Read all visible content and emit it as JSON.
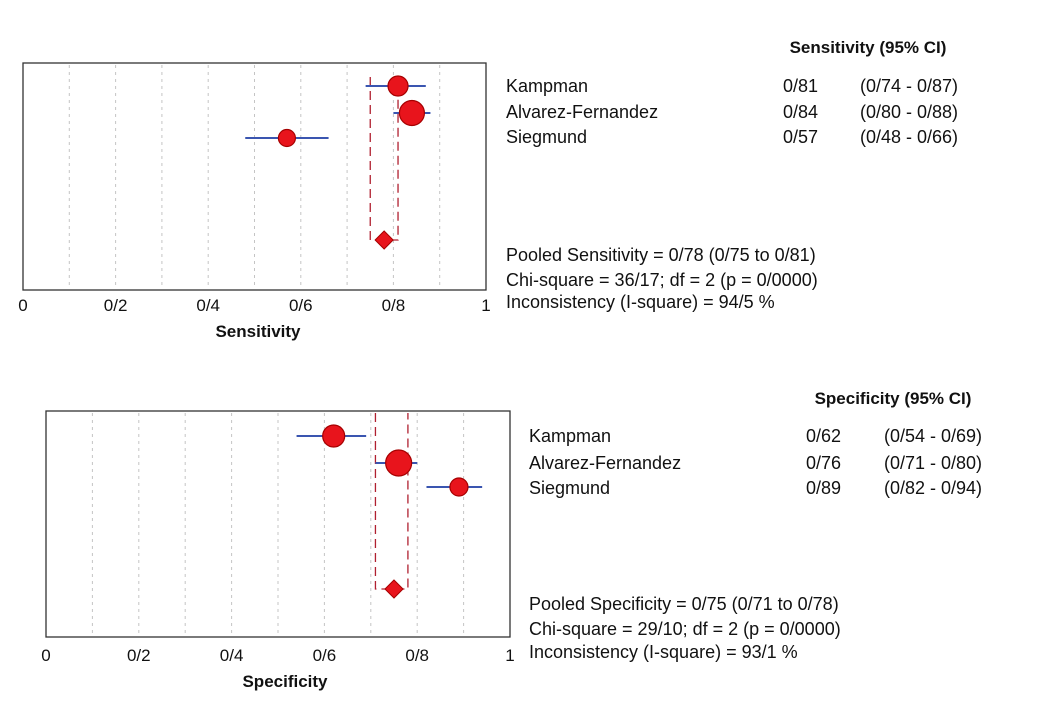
{
  "chart_data": [
    {
      "type": "forest",
      "xlabel": "Sensitivity",
      "xlim": [
        0,
        1
      ],
      "x_ticks": [
        "0",
        "0/2",
        "0/4",
        "0/6",
        "0/8",
        "1"
      ],
      "x_tick_values": [
        0,
        0.2,
        0.4,
        0.6,
        0.8,
        1.0
      ],
      "column_header": "Sensitivity (95% CI)",
      "studies": [
        {
          "name": "Kampman",
          "estimate": 0.81,
          "lower": 0.74,
          "upper": 0.87,
          "weight": 1.0,
          "value_label": "0/81",
          "ci_label": "(0/74 - 0/87)"
        },
        {
          "name": "Alvarez-Fernandez",
          "estimate": 0.84,
          "lower": 0.8,
          "upper": 0.88,
          "weight": 1.25,
          "value_label": "0/84",
          "ci_label": "(0/80 - 0/88)"
        },
        {
          "name": "Siegmund",
          "estimate": 0.57,
          "lower": 0.48,
          "upper": 0.66,
          "weight": 0.85,
          "value_label": "0/57",
          "ci_label": "(0/48 - 0/66)"
        }
      ],
      "pooled": {
        "estimate": 0.78,
        "lower": 0.75,
        "upper": 0.81
      },
      "stats": [
        "Pooled Sensitivity = 0/78 (0/75 to 0/81)",
        "Chi-square = 36/17; df =  2 (p = 0/0000)",
        "Inconsistency (I-square) = 94/5 %"
      ],
      "colors": {
        "point": "#e8141c",
        "ci": "#3a55b0",
        "pooled": "#b02030"
      }
    },
    {
      "type": "forest",
      "xlabel": "Specificity",
      "xlim": [
        0,
        1
      ],
      "x_ticks": [
        "0",
        "0/2",
        "0/4",
        "0/6",
        "0/8",
        "1"
      ],
      "x_tick_values": [
        0,
        0.2,
        0.4,
        0.6,
        0.8,
        1.0
      ],
      "column_header": "Specificity (95% CI)",
      "studies": [
        {
          "name": "Kampman",
          "estimate": 0.62,
          "lower": 0.54,
          "upper": 0.69,
          "weight": 1.1,
          "value_label": "0/62",
          "ci_label": "(0/54 - 0/69)"
        },
        {
          "name": "Alvarez-Fernandez",
          "estimate": 0.76,
          "lower": 0.71,
          "upper": 0.8,
          "weight": 1.3,
          "value_label": "0/76",
          "ci_label": "(0/71 - 0/80)"
        },
        {
          "name": "Siegmund",
          "estimate": 0.89,
          "lower": 0.82,
          "upper": 0.94,
          "weight": 0.9,
          "value_label": "0/89",
          "ci_label": "(0/82 - 0/94)"
        }
      ],
      "pooled": {
        "estimate": 0.75,
        "lower": 0.71,
        "upper": 0.78
      },
      "stats": [
        "Pooled Specificity = 0/75 (0/71 to 0/78)",
        "Chi-square = 29/10; df =  2 (p = 0/0000)",
        "Inconsistency (I-square) = 93/1 %"
      ],
      "colors": {
        "point": "#e8141c",
        "ci": "#3a55b0",
        "pooled": "#b02030"
      }
    }
  ]
}
